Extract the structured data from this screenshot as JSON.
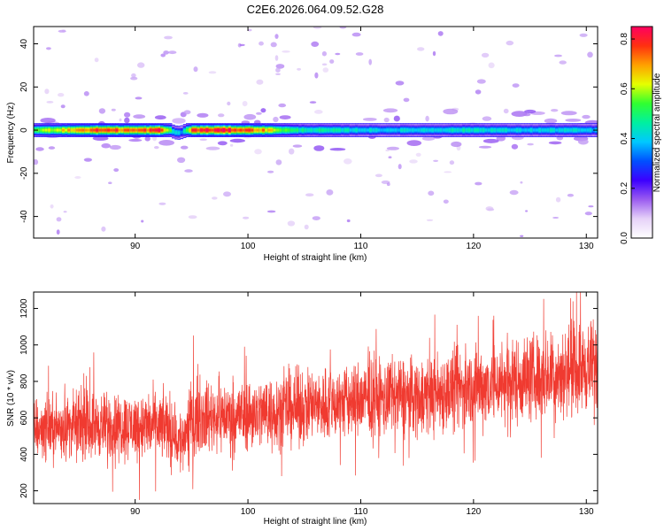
{
  "figure": {
    "title": "C2E6.2026.064.09.52.G28"
  },
  "chart_data": [
    {
      "type": "heatmap",
      "xlabel": "Height of straight line (km)",
      "ylabel": "Frequency (Hz)",
      "xlim": [
        81,
        131
      ],
      "ylim": [
        -50,
        48
      ],
      "xticks": [
        90,
        100,
        110,
        120,
        130
      ],
      "yticks": [
        -40,
        -20,
        0,
        20,
        40
      ],
      "colorbar": {
        "label": "Normalized spectral amplitude",
        "range": [
          0.0,
          0.85
        ],
        "ticks": [
          0.0,
          0.2,
          0.4,
          0.6,
          0.8
        ],
        "colormap": [
          "#ffffff",
          "#e6d2f8",
          "#9b5cf0",
          "#3c00ff",
          "#0050ff",
          "#00c8ff",
          "#00f0a0",
          "#30ff30",
          "#e6ff00",
          "#ffa000",
          "#ff3010",
          "#ff0060"
        ]
      },
      "band": {
        "center_frequency_hz": 0,
        "half_width_hz": 3.2,
        "profile": [
          {
            "x": 81,
            "v": 0.55
          },
          {
            "x": 84,
            "v": 0.68
          },
          {
            "x": 87,
            "v": 0.78
          },
          {
            "x": 90,
            "v": 0.72
          },
          {
            "x": 92,
            "v": 0.8
          },
          {
            "x": 93.3,
            "v": 0.45
          },
          {
            "x": 94,
            "v": 0.35
          },
          {
            "x": 95,
            "v": 0.78
          },
          {
            "x": 98,
            "v": 0.82
          },
          {
            "x": 101,
            "v": 0.72
          },
          {
            "x": 104,
            "v": 0.48
          },
          {
            "x": 108,
            "v": 0.44
          },
          {
            "x": 112,
            "v": 0.4
          },
          {
            "x": 116,
            "v": 0.42
          },
          {
            "x": 120,
            "v": 0.45
          },
          {
            "x": 124,
            "v": 0.4
          },
          {
            "x": 128,
            "v": 0.42
          },
          {
            "x": 131,
            "v": 0.38
          }
        ]
      }
    },
    {
      "type": "line",
      "xlabel": "Height of straight line (km)",
      "ylabel": "SNR (10 * v/v)",
      "xlim": [
        81,
        131
      ],
      "ylim": [
        130,
        1290
      ],
      "xticks": [
        90,
        100,
        110,
        120,
        130
      ],
      "yticks": [
        200,
        400,
        600,
        800,
        1000,
        1200
      ],
      "series": [
        {
          "color": "#f03a30",
          "trend": [
            {
              "x": 81,
              "y": 540
            },
            {
              "x": 85,
              "y": 560
            },
            {
              "x": 90,
              "y": 555
            },
            {
              "x": 93,
              "y": 555
            },
            {
              "x": 94,
              "y": 460
            },
            {
              "x": 95,
              "y": 600
            },
            {
              "x": 100,
              "y": 620
            },
            {
              "x": 105,
              "y": 660
            },
            {
              "x": 110,
              "y": 700
            },
            {
              "x": 115,
              "y": 720
            },
            {
              "x": 120,
              "y": 770
            },
            {
              "x": 125,
              "y": 820
            },
            {
              "x": 131,
              "y": 890
            }
          ],
          "noise_amplitude": 130,
          "points_per_km": 60
        }
      ]
    }
  ]
}
